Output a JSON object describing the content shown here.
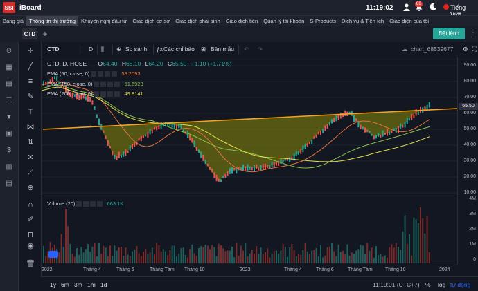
{
  "topbar": {
    "logo": "SSI",
    "app_name": "iBoard",
    "time": "11:19:02",
    "notifications": "86",
    "language": "Tiếng Việt",
    "icons": [
      "user-icon",
      "bell-icon",
      "moon-icon",
      "flag-icon"
    ]
  },
  "menu": [
    "Bảng giá",
    "Thông tin thị trường",
    "Khuyến nghị đầu tư",
    "Giao dịch cơ sở",
    "Giao dịch phái sinh",
    "Giao dịch tiền",
    "Quản lý tài khoản",
    "S-Products",
    "Dịch vụ & Tiện ích",
    "Giao diện của tôi"
  ],
  "tabs": {
    "active": "CTD",
    "add": "+"
  },
  "order_button": "Đặt lệnh",
  "chart_toolbar": {
    "symbol": "CTD",
    "interval": "D",
    "compare": "So sánh",
    "indicators": "Các chỉ báo",
    "templates": "Bản mẫu",
    "chart_name": "chart_68539677"
  },
  "legend": {
    "title": "CTD, D, HOSE",
    "open_label": "O",
    "open": "64.40",
    "high_label": "H",
    "high": "66.10",
    "low_label": "L",
    "low": "64.20",
    "close_label": "C",
    "close": "65.50",
    "change": "+1.10 (+1.71%)",
    "ema": [
      {
        "label": "EMA (50, close, 0)",
        "value": "58.2093",
        "color": "#e8743b"
      },
      {
        "label": "EMA (150, close, 0)",
        "value": "51.6923",
        "color": "#8bc34a"
      },
      {
        "label": "EMA (200, close, 0)",
        "value": "49.8141",
        "color": "#e6e14b"
      }
    ],
    "volume_label": "Volume (20)",
    "volume_value": "663.1K"
  },
  "price_axis": [
    "90.00",
    "80.00",
    "70.00",
    "60.00",
    "50.00",
    "40.00",
    "30.00",
    "20.00",
    "10.00"
  ],
  "last_price": "65.50",
  "volume_axis": [
    "4M",
    "3M",
    "2M",
    "1M",
    "0"
  ],
  "time_axis": [
    "2022",
    "Tháng 4",
    "Tháng 6",
    "Tháng Tám",
    "Tháng 10",
    "2023",
    "Tháng 4",
    "Tháng 6",
    "Tháng Tám",
    "Tháng 10",
    "2024"
  ],
  "bottom": {
    "ranges": [
      "1y",
      "6m",
      "3m",
      "1m",
      "1d"
    ],
    "time": "11:19:01 (UTC+7)",
    "percent": "%",
    "log": "log",
    "auto": "tự động"
  },
  "colors": {
    "up": "#26a69a",
    "down": "#ef5350",
    "accent": "#26a69a",
    "trend": "#f7a21b",
    "fill": "#8a8a0a"
  }
}
